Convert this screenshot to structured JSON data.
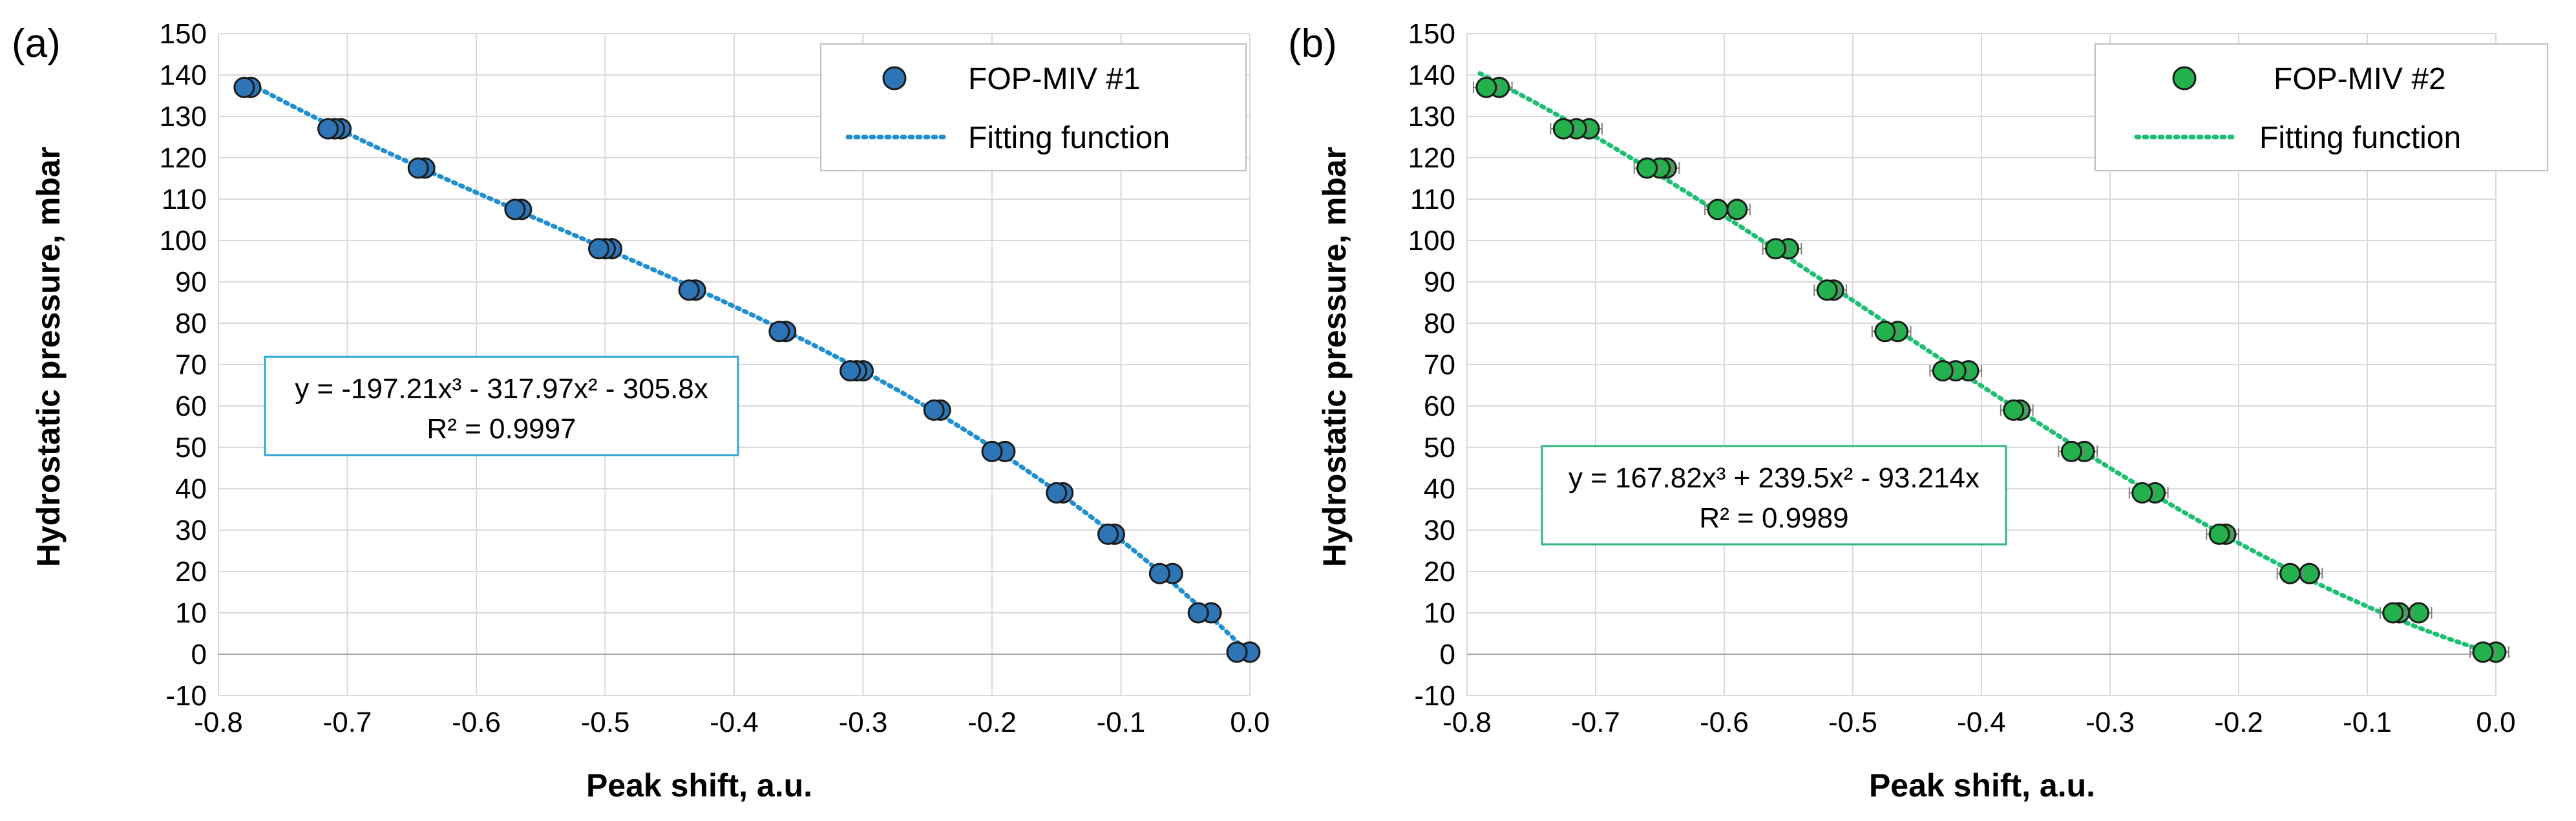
{
  "chart_data": [
    {
      "type": "scatter",
      "panel_label": "(a)",
      "xlabel": "Peak shift, a.u.",
      "ylabel": "Hydrostatic pressure, mbar",
      "xlim": [
        -0.8,
        0.0
      ],
      "ylim": [
        -10,
        150
      ],
      "xticks": [
        -0.8,
        -0.7,
        -0.6,
        -0.5,
        -0.4,
        -0.3,
        -0.2,
        -0.1,
        0.0
      ],
      "xtick_labels": [
        "-0.8",
        "-0.7",
        "-0.6",
        "-0.5",
        "-0.4",
        "-0.3",
        "-0.2",
        "-0.1",
        "0.0"
      ],
      "yticks": [
        -10,
        0,
        10,
        20,
        30,
        40,
        50,
        60,
        70,
        80,
        90,
        100,
        110,
        120,
        130,
        140,
        150
      ],
      "ytick_labels": [
        "-10",
        "0",
        "10",
        "20",
        "30",
        "40",
        "50",
        "60",
        "70",
        "80",
        "90",
        "100",
        "110",
        "120",
        "130",
        "140",
        "150"
      ],
      "grid": true,
      "legend": {
        "position": "top-right",
        "entries": [
          {
            "label": "FOP-MIV #1",
            "kind": "marker"
          },
          {
            "label": "Fitting function",
            "kind": "dotted-line"
          }
        ]
      },
      "colors": {
        "marker_fill": "#2e75b6",
        "marker_edge": "#1a1a1a",
        "fit_line": "#1f8fcf",
        "equation_border": "#31a4d6"
      },
      "error_bars": false,
      "series": [
        {
          "name": "FOP-MIV #1",
          "points": [
            {
              "x": 0.0,
              "y": 0.5
            },
            {
              "x": -0.01,
              "y": 0.5
            },
            {
              "x": -0.03,
              "y": 10
            },
            {
              "x": -0.04,
              "y": 10
            },
            {
              "x": -0.06,
              "y": 19.5
            },
            {
              "x": -0.07,
              "y": 19.5
            },
            {
              "x": -0.105,
              "y": 29
            },
            {
              "x": -0.11,
              "y": 29
            },
            {
              "x": -0.145,
              "y": 39
            },
            {
              "x": -0.15,
              "y": 39
            },
            {
              "x": -0.19,
              "y": 49
            },
            {
              "x": -0.2,
              "y": 49
            },
            {
              "x": -0.24,
              "y": 59
            },
            {
              "x": -0.245,
              "y": 59
            },
            {
              "x": -0.3,
              "y": 68.5
            },
            {
              "x": -0.305,
              "y": 68.5
            },
            {
              "x": -0.31,
              "y": 68.5
            },
            {
              "x": -0.36,
              "y": 78
            },
            {
              "x": -0.365,
              "y": 78
            },
            {
              "x": -0.43,
              "y": 88
            },
            {
              "x": -0.435,
              "y": 88
            },
            {
              "x": -0.495,
              "y": 98
            },
            {
              "x": -0.5,
              "y": 98
            },
            {
              "x": -0.505,
              "y": 98
            },
            {
              "x": -0.565,
              "y": 107.5
            },
            {
              "x": -0.57,
              "y": 107.5
            },
            {
              "x": -0.64,
              "y": 117.5
            },
            {
              "x": -0.645,
              "y": 117.5
            },
            {
              "x": -0.705,
              "y": 127
            },
            {
              "x": -0.71,
              "y": 127
            },
            {
              "x": -0.715,
              "y": 127
            },
            {
              "x": -0.775,
              "y": 137
            },
            {
              "x": -0.78,
              "y": 137
            }
          ]
        }
      ],
      "fit": {
        "label": "Fitting function",
        "coefficients": {
          "a3": -197.21,
          "a2": -317.97,
          "a1": -305.8
        },
        "x_range": [
          -0.78,
          0.0
        ]
      },
      "annotation": {
        "equation": "y = -197.21x³ - 317.97x² - 305.8x",
        "r2": "R² = 0.9997"
      }
    },
    {
      "type": "scatter",
      "panel_label": "(b)",
      "xlabel": "Peak shift, a.u.",
      "ylabel": "Hydrostatic pressure, mbar",
      "xlim": [
        -0.8,
        0.0
      ],
      "ylim": [
        -10,
        150
      ],
      "xticks": [
        -0.8,
        -0.7,
        -0.6,
        -0.5,
        -0.4,
        -0.3,
        -0.2,
        -0.1,
        0.0
      ],
      "xtick_labels": [
        "-0.8",
        "-0.7",
        "-0.6",
        "-0.5",
        "-0.4",
        "-0.3",
        "-0.2",
        "-0.1",
        "0.0"
      ],
      "yticks": [
        -10,
        0,
        10,
        20,
        30,
        40,
        50,
        60,
        70,
        80,
        90,
        100,
        110,
        120,
        130,
        140,
        150
      ],
      "ytick_labels": [
        "-10",
        "0",
        "10",
        "20",
        "30",
        "40",
        "50",
        "60",
        "70",
        "80",
        "90",
        "100",
        "110",
        "120",
        "130",
        "140",
        "150"
      ],
      "grid": true,
      "legend": {
        "position": "top-right",
        "entries": [
          {
            "label": "FOP-MIV #2",
            "kind": "marker"
          },
          {
            "label": "Fitting function",
            "kind": "dotted-line"
          }
        ]
      },
      "colors": {
        "marker_fill": "#22b14c",
        "marker_edge": "#1a1a1a",
        "fit_line": "#1dbf73",
        "equation_border": "#2db57a"
      },
      "error_bars": true,
      "error_bar_halfwidth": 0.01,
      "series": [
        {
          "name": "FOP-MIV #2",
          "points": [
            {
              "x": 0.0,
              "y": 0.5
            },
            {
              "x": -0.01,
              "y": 0.5
            },
            {
              "x": -0.06,
              "y": 10
            },
            {
              "x": -0.075,
              "y": 10
            },
            {
              "x": -0.08,
              "y": 10
            },
            {
              "x": -0.145,
              "y": 19.5
            },
            {
              "x": -0.16,
              "y": 19.5
            },
            {
              "x": -0.21,
              "y": 29
            },
            {
              "x": -0.215,
              "y": 29
            },
            {
              "x": -0.265,
              "y": 39
            },
            {
              "x": -0.275,
              "y": 39
            },
            {
              "x": -0.32,
              "y": 49
            },
            {
              "x": -0.33,
              "y": 49
            },
            {
              "x": -0.37,
              "y": 59
            },
            {
              "x": -0.375,
              "y": 59
            },
            {
              "x": -0.41,
              "y": 68.5
            },
            {
              "x": -0.42,
              "y": 68.5
            },
            {
              "x": -0.43,
              "y": 68.5
            },
            {
              "x": -0.465,
              "y": 78
            },
            {
              "x": -0.475,
              "y": 78
            },
            {
              "x": -0.515,
              "y": 88
            },
            {
              "x": -0.52,
              "y": 88
            },
            {
              "x": -0.55,
              "y": 98
            },
            {
              "x": -0.56,
              "y": 98
            },
            {
              "x": -0.59,
              "y": 107.5
            },
            {
              "x": -0.605,
              "y": 107.5
            },
            {
              "x": -0.645,
              "y": 117.5
            },
            {
              "x": -0.65,
              "y": 117.5
            },
            {
              "x": -0.66,
              "y": 117.5
            },
            {
              "x": -0.705,
              "y": 127
            },
            {
              "x": -0.715,
              "y": 127
            },
            {
              "x": -0.725,
              "y": 127
            },
            {
              "x": -0.775,
              "y": 137
            },
            {
              "x": -0.785,
              "y": 137
            }
          ]
        }
      ],
      "fit": {
        "label": "Fitting function",
        "coefficients": {
          "a3": 167.82,
          "a2": 239.5,
          "a1": -93.214
        },
        "x_range": [
          -0.79,
          0.0
        ]
      },
      "annotation": {
        "equation": "y = 167.82x³ + 239.5x² - 93.214x",
        "r2": "R² = 0.9989"
      }
    }
  ]
}
